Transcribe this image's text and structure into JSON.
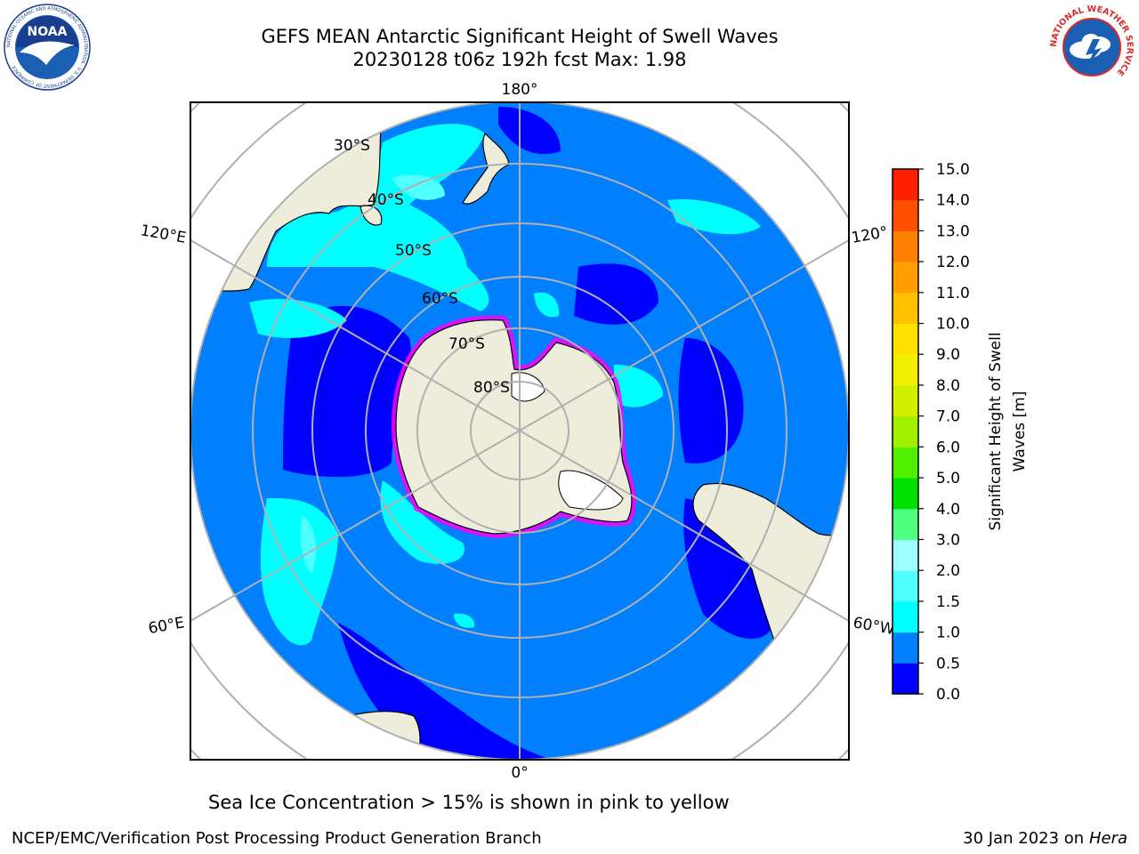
{
  "header": {
    "title_line1": "GEFS MEAN Antarctic Significant Height of Swell Waves",
    "title_line2": "20230128 t06z 192h fcst   Max: 1.98"
  },
  "logos": {
    "left": "NOAA",
    "left_ring": "NATIONAL OCEANIC AND ATMOSPHERIC ADMINISTRATION · U.S. DEPARTMENT OF COMMERCE",
    "right_ring": "NATIONAL WEATHER SERVICE"
  },
  "map": {
    "lon_labels": {
      "top": "180°",
      "bottom": "0°",
      "left_upper": "120°E",
      "left_lower": "60°E",
      "right_upper": "120°",
      "right_lower": "60°W"
    },
    "lat_labels": [
      "30°S",
      "40°S",
      "50°S",
      "60°S",
      "70°S",
      "80°S"
    ],
    "colors": {
      "ocean_main": "#0080ff",
      "ocean_low": "#0000ff",
      "swell_mid": "#00ffff",
      "swell_light": "#50ffff",
      "land": "#eeeddc",
      "grid": "#b0b0b0",
      "ice_edge": "#ff00ff"
    }
  },
  "colorbar": {
    "label": "Significant Height of Swell Waves [m]",
    "label_line1": "Significant Height of Swell",
    "label_line2": "Waves [m]",
    "ticks": [
      "0.0",
      "0.5",
      "1.0",
      "1.5",
      "2.0",
      "3.0",
      "4.0",
      "5.0",
      "6.0",
      "7.0",
      "8.0",
      "9.0",
      "10.0",
      "11.0",
      "12.0",
      "13.0",
      "14.0",
      "15.0"
    ],
    "colors": [
      "#0000ff",
      "#0080ff",
      "#00ffff",
      "#50ffff",
      "#a0ffff",
      "#50ff80",
      "#00e000",
      "#50f000",
      "#a0f000",
      "#d0f000",
      "#f0f000",
      "#ffe000",
      "#ffc000",
      "#ffa000",
      "#ff8000",
      "#ff5000",
      "#ff2000"
    ]
  },
  "note": "Sea Ice Concentration > 15% is shown in pink to yellow",
  "footer": {
    "left": "NCEP/EMC/Verification Post Processing Product Generation Branch",
    "right_date": "30 Jan 2023 on",
    "right_host": "Hera"
  }
}
